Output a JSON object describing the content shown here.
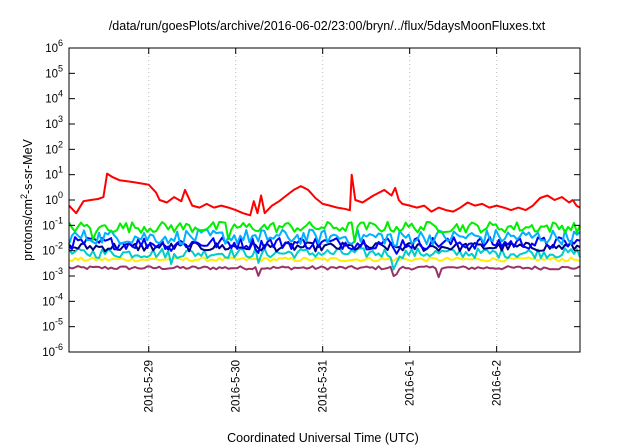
{
  "chart_data": {
    "type": "line",
    "title": "/data/run/goesPlots/archive/2016-06-02/23:00/bryn/../flux/5daysMoonFluxes.txt",
    "xlabel": "Coordinated Universal Time (UTC)",
    "ylabel": {
      "prefix": "protons/cm",
      "sup": "2",
      "suffix": "-s-sr-MeV"
    },
    "y_scale": "log",
    "ylim": [
      1e-06,
      1000000.0
    ],
    "y_ticks": [
      {
        "value": 1e-06,
        "base": "10",
        "exp": "-6"
      },
      {
        "value": 1e-05,
        "base": "10",
        "exp": "-5"
      },
      {
        "value": 0.0001,
        "base": "10",
        "exp": "-4"
      },
      {
        "value": 0.001,
        "base": "10",
        "exp": "-3"
      },
      {
        "value": 0.01,
        "base": "10",
        "exp": "-2"
      },
      {
        "value": 0.1,
        "base": "10",
        "exp": "-1"
      },
      {
        "value": 1,
        "base": "10",
        "exp": "0"
      },
      {
        "value": 10,
        "base": "10",
        "exp": "1"
      },
      {
        "value": 100,
        "base": "10",
        "exp": "2"
      },
      {
        "value": 1000,
        "base": "10",
        "exp": "3"
      },
      {
        "value": 10000,
        "base": "10",
        "exp": "4"
      },
      {
        "value": 100000,
        "base": "10",
        "exp": "5"
      },
      {
        "value": 1000000,
        "base": "10",
        "exp": "6"
      }
    ],
    "xlim": [
      "2016-05-28 02:00",
      "2016-06-02 23:00"
    ],
    "x_ticks": [
      {
        "label": "2016-5-29",
        "date": "2016-05-29 00:00"
      },
      {
        "label": "2016-5-30",
        "date": "2016-05-30 00:00"
      },
      {
        "label": "2016-5-31",
        "date": "2016-05-31 00:00"
      },
      {
        "label": "2016-6-1",
        "date": "2016-06-01 00:00"
      },
      {
        "label": "2016-6-2",
        "date": "2016-06-02 00:00"
      }
    ],
    "grid": true,
    "series": [
      {
        "color": "#ff0000",
        "points": [
          [
            "2016-05-28 02:00",
            0.6
          ],
          [
            "2016-05-28 04:00",
            0.3
          ],
          [
            "2016-05-28 06:00",
            0.9
          ],
          [
            "2016-05-28 08:00",
            1.0
          ],
          [
            "2016-05-28 10:00",
            1.1
          ],
          [
            "2016-05-28 11:30",
            1.3
          ],
          [
            "2016-05-28 12:30",
            11
          ],
          [
            "2016-05-28 14:00",
            8
          ],
          [
            "2016-05-28 16:00",
            6
          ],
          [
            "2016-05-28 18:00",
            5.5
          ],
          [
            "2016-05-28 20:00",
            5.0
          ],
          [
            "2016-05-28 22:00",
            4.5
          ],
          [
            "2016-05-29 00:00",
            4.0
          ],
          [
            "2016-05-29 02:00",
            2.0
          ],
          [
            "2016-05-29 03:00",
            1.0
          ],
          [
            "2016-05-29 05:00",
            0.8
          ],
          [
            "2016-05-29 07:00",
            1.3
          ],
          [
            "2016-05-29 09:00",
            0.9
          ],
          [
            "2016-05-29 10:00",
            2.5
          ],
          [
            "2016-05-29 12:00",
            0.6
          ],
          [
            "2016-05-29 14:00",
            0.5
          ],
          [
            "2016-05-29 16:00",
            0.7
          ],
          [
            "2016-05-29 18:00",
            0.5
          ],
          [
            "2016-05-29 20:00",
            0.6
          ],
          [
            "2016-05-29 22:00",
            0.5
          ],
          [
            "2016-05-30 00:00",
            0.4
          ],
          [
            "2016-05-30 02:00",
            0.3
          ],
          [
            "2016-05-30 04:00",
            0.25
          ],
          [
            "2016-05-30 05:00",
            0.9
          ],
          [
            "2016-05-30 06:00",
            0.3
          ],
          [
            "2016-05-30 07:00",
            1.5
          ],
          [
            "2016-05-30 08:00",
            0.3
          ],
          [
            "2016-05-30 10:00",
            0.6
          ],
          [
            "2016-05-30 12:00",
            0.9
          ],
          [
            "2016-05-30 14:00",
            1.5
          ],
          [
            "2016-05-30 16:00",
            2.5
          ],
          [
            "2016-05-30 18:00",
            3.5
          ],
          [
            "2016-05-30 20:00",
            2.5
          ],
          [
            "2016-05-30 22:00",
            1.2
          ],
          [
            "2016-05-31 00:00",
            0.7
          ],
          [
            "2016-05-31 02:00",
            0.6
          ],
          [
            "2016-05-31 04:00",
            0.5
          ],
          [
            "2016-05-31 06:00",
            0.45
          ],
          [
            "2016-05-31 07:30",
            0.4
          ],
          [
            "2016-05-31 08:00",
            10
          ],
          [
            "2016-05-31 09:00",
            1.0
          ],
          [
            "2016-05-31 11:00",
            0.8
          ],
          [
            "2016-05-31 14:00",
            1.5
          ],
          [
            "2016-05-31 17:00",
            2.5
          ],
          [
            "2016-05-31 19:00",
            1.5
          ],
          [
            "2016-05-31 20:00",
            3.0
          ],
          [
            "2016-05-31 21:00",
            1.0
          ],
          [
            "2016-05-31 22:00",
            0.7
          ],
          [
            "2016-06-01 00:00",
            0.6
          ],
          [
            "2016-06-01 02:00",
            0.5
          ],
          [
            "2016-06-01 04:00",
            0.6
          ],
          [
            "2016-06-01 06:00",
            0.35
          ],
          [
            "2016-06-01 08:00",
            0.5
          ],
          [
            "2016-06-01 10:00",
            0.4
          ],
          [
            "2016-06-01 12:00",
            0.35
          ],
          [
            "2016-06-01 14:00",
            0.5
          ],
          [
            "2016-06-01 16:00",
            0.8
          ],
          [
            "2016-06-01 18:00",
            0.6
          ],
          [
            "2016-06-01 20:00",
            0.7
          ],
          [
            "2016-06-01 22:00",
            0.5
          ],
          [
            "2016-06-02 00:00",
            0.6
          ],
          [
            "2016-06-02 02:00",
            0.5
          ],
          [
            "2016-06-02 04:00",
            0.4
          ],
          [
            "2016-06-02 06:00",
            0.5
          ],
          [
            "2016-06-02 08:00",
            0.4
          ],
          [
            "2016-06-02 10:00",
            0.6
          ],
          [
            "2016-06-02 12:00",
            1.2
          ],
          [
            "2016-06-02 14:00",
            1.5
          ],
          [
            "2016-06-02 16:00",
            1.0
          ],
          [
            "2016-06-02 18:00",
            1.3
          ],
          [
            "2016-06-02 20:00",
            0.8
          ],
          [
            "2016-06-02 21:00",
            1.0
          ],
          [
            "2016-06-02 22:00",
            0.6
          ],
          [
            "2016-06-02 23:00",
            0.5
          ]
        ]
      },
      {
        "color": "#00ee00",
        "level": 0.085,
        "spread": 0.22,
        "spikes": [
          [
            "2016-05-28 09:00",
            0.35
          ],
          [
            "2016-05-29 22:00",
            0.45
          ],
          [
            "2016-05-31 09:00",
            0.4
          ]
        ]
      },
      {
        "color": "#00b0ff",
        "level": 0.035,
        "spread": 0.3,
        "spikes": [
          [
            "2016-05-29 06:00",
            0.3
          ],
          [
            "2016-05-30 06:00",
            0.3
          ],
          [
            "2016-05-31 20:00",
            0.3
          ]
        ]
      },
      {
        "color": "#0000ff",
        "level": 0.02,
        "spread": 0.25,
        "spikes": [
          [
            "2016-05-29 06:00",
            0.3
          ],
          [
            "2016-05-30 06:00",
            0.3
          ],
          [
            "2016-05-31 20:00",
            0.3
          ]
        ]
      },
      {
        "color": "#000080",
        "level": 0.014,
        "spread": 0.18,
        "spikes": []
      },
      {
        "color": "#00cccc",
        "level": 0.008,
        "spread": 0.2,
        "spikes": [
          [
            "2016-05-29 06:00",
            0.5
          ],
          [
            "2016-05-30 06:00",
            0.5
          ],
          [
            "2016-05-31 20:00",
            0.5
          ]
        ]
      },
      {
        "color": "#ffee00",
        "level": 0.0045,
        "spread": 0.08,
        "spikes": []
      },
      {
        "color": "#993366",
        "level": 0.0021,
        "spread": 0.07,
        "spikes": [
          [
            "2016-05-30 06:00",
            0.25
          ],
          [
            "2016-05-31 20:00",
            0.3
          ],
          [
            "2016-06-01 08:00",
            0.3
          ]
        ]
      }
    ]
  }
}
